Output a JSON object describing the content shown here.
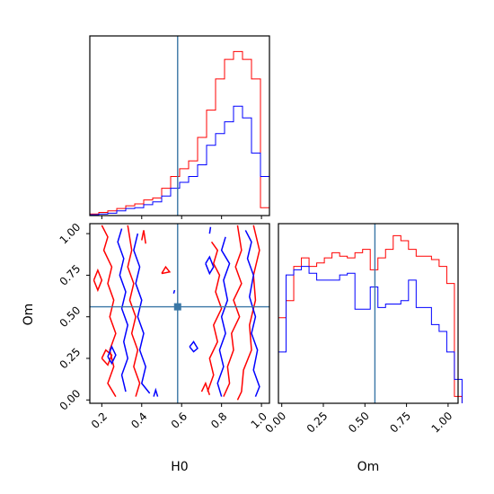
{
  "chart_data": {
    "type": "corner",
    "parameters": [
      "H0",
      "Om"
    ],
    "truth": {
      "H0": 0.58,
      "Om": 0.56
    },
    "colors": {
      "series_a": "#ff0000",
      "series_b": "#0000ff",
      "truth": "#3a77a6"
    },
    "ranges": {
      "H0": [
        0.14,
        1.04
      ],
      "Om": [
        -0.02,
        1.06
      ]
    },
    "grid": false,
    "ticks": {
      "H0": [
        0.2,
        0.4,
        0.6,
        0.8,
        1.0
      ],
      "H0_labels": [
        "0.2",
        "0.4",
        "0.6",
        "0.8",
        "1.0"
      ],
      "Om": [
        0.0,
        0.25,
        0.5,
        0.75,
        1.0
      ],
      "Om_labels": [
        "0.00",
        "0.25",
        "0.50",
        "0.75",
        "1.00"
      ]
    },
    "xlabel_left": "H0",
    "xlabel_right": "Om",
    "ylabel_lower": "Om",
    "hist_H0": {
      "x": [
        0.14,
        0.185,
        0.23,
        0.275,
        0.32,
        0.365,
        0.41,
        0.455,
        0.5,
        0.545,
        0.59,
        0.635,
        0.68,
        0.725,
        0.77,
        0.815,
        0.86,
        0.905,
        0.95,
        0.995
      ],
      "series": [
        {
          "values": [
            0.004,
            0.008,
            0.012,
            0.018,
            0.025,
            0.03,
            0.04,
            0.045,
            0.07,
            0.1,
            0.12,
            0.14,
            0.2,
            0.27,
            0.35,
            0.4,
            0.42,
            0.4,
            0.35,
            0.02
          ]
        },
        {
          "values": [
            0.002,
            0.004,
            0.006,
            0.012,
            0.018,
            0.02,
            0.028,
            0.035,
            0.05,
            0.07,
            0.085,
            0.1,
            0.13,
            0.18,
            0.21,
            0.24,
            0.28,
            0.25,
            0.16,
            0.1
          ]
        }
      ],
      "ylim": [
        0,
        0.46
      ]
    },
    "hist_Om": {
      "x": [
        -0.02,
        0.026,
        0.072,
        0.118,
        0.164,
        0.21,
        0.256,
        0.302,
        0.348,
        0.394,
        0.44,
        0.486,
        0.532,
        0.578,
        0.624,
        0.67,
        0.716,
        0.762,
        0.808,
        0.854,
        0.9,
        0.946,
        0.992,
        1.038
      ],
      "series": [
        {
          "values": [
            0.5,
            0.6,
            0.8,
            0.85,
            0.8,
            0.82,
            0.85,
            0.88,
            0.86,
            0.85,
            0.88,
            0.9,
            0.78,
            0.85,
            0.9,
            0.98,
            0.95,
            0.9,
            0.86,
            0.86,
            0.84,
            0.8,
            0.7,
            0.04
          ]
        },
        {
          "values": [
            0.3,
            0.75,
            0.78,
            0.8,
            0.76,
            0.72,
            0.72,
            0.72,
            0.75,
            0.76,
            0.55,
            0.55,
            0.68,
            0.56,
            0.58,
            0.58,
            0.6,
            0.72,
            0.56,
            0.56,
            0.46,
            0.42,
            0.3,
            0.14
          ]
        }
      ],
      "ylim": [
        0,
        1.05
      ]
    },
    "contours": [
      {
        "series": 0,
        "points": [
          [
            0.2,
            1.05
          ],
          [
            0.23,
            0.98
          ],
          [
            0.21,
            0.9
          ],
          [
            0.25,
            0.8
          ],
          [
            0.23,
            0.7
          ],
          [
            0.26,
            0.6
          ],
          [
            0.24,
            0.5
          ],
          [
            0.27,
            0.4
          ],
          [
            0.24,
            0.3
          ],
          [
            0.26,
            0.2
          ],
          [
            0.23,
            0.1
          ],
          [
            0.27,
            0.02
          ]
        ]
      },
      {
        "series": 0,
        "points": [
          [
            0.33,
            1.05
          ],
          [
            0.35,
            0.9
          ],
          [
            0.33,
            0.8
          ],
          [
            0.36,
            0.7
          ],
          [
            0.34,
            0.6
          ],
          [
            0.37,
            0.5
          ],
          [
            0.35,
            0.4
          ],
          [
            0.38,
            0.3
          ],
          [
            0.36,
            0.2
          ],
          [
            0.39,
            0.1
          ],
          [
            0.37,
            0.02
          ]
        ]
      },
      {
        "series": 0,
        "points": [
          [
            0.88,
            1.05
          ],
          [
            0.9,
            0.9
          ],
          [
            0.87,
            0.8
          ],
          [
            0.9,
            0.7
          ],
          [
            0.86,
            0.6
          ],
          [
            0.89,
            0.5
          ],
          [
            0.85,
            0.4
          ],
          [
            0.86,
            0.3
          ],
          [
            0.83,
            0.2
          ],
          [
            0.84,
            0.1
          ],
          [
            0.81,
            0.02
          ]
        ]
      },
      {
        "series": 0,
        "points": [
          [
            0.96,
            1.05
          ],
          [
            0.99,
            0.9
          ],
          [
            0.96,
            0.75
          ],
          [
            0.97,
            0.6
          ],
          [
            0.94,
            0.45
          ],
          [
            0.95,
            0.3
          ],
          [
            0.91,
            0.18
          ],
          [
            0.9,
            0.05
          ],
          [
            0.88,
            0.0
          ]
        ]
      },
      {
        "series": 0,
        "points": [
          [
            0.75,
            0.95
          ],
          [
            0.78,
            0.9
          ],
          [
            0.76,
            0.82
          ],
          [
            0.79,
            0.75
          ],
          [
            0.77,
            0.65
          ],
          [
            0.8,
            0.55
          ],
          [
            0.76,
            0.45
          ],
          [
            0.78,
            0.35
          ],
          [
            0.74,
            0.25
          ],
          [
            0.76,
            0.15
          ],
          [
            0.73,
            0.05
          ]
        ]
      },
      {
        "series": 0,
        "points": [
          [
            0.16,
            0.72
          ],
          [
            0.18,
            0.78
          ],
          [
            0.2,
            0.72
          ],
          [
            0.18,
            0.66
          ],
          [
            0.16,
            0.72
          ]
        ]
      },
      {
        "series": 0,
        "points": [
          [
            0.2,
            0.25
          ],
          [
            0.22,
            0.3
          ],
          [
            0.25,
            0.27
          ],
          [
            0.23,
            0.21
          ],
          [
            0.2,
            0.25
          ]
        ]
      },
      {
        "series": 0,
        "points": [
          [
            0.5,
            0.76
          ],
          [
            0.52,
            0.8
          ],
          [
            0.54,
            0.77
          ],
          [
            0.5,
            0.76
          ]
        ]
      },
      {
        "series": 0,
        "points": [
          [
            0.4,
            0.96
          ],
          [
            0.41,
            1.02
          ],
          [
            0.42,
            0.94
          ]
        ]
      },
      {
        "series": 0,
        "points": [
          [
            0.7,
            0.05
          ],
          [
            0.72,
            0.1
          ],
          [
            0.74,
            0.03
          ]
        ]
      },
      {
        "series": 1,
        "points": [
          [
            0.3,
            1.03
          ],
          [
            0.28,
            0.95
          ],
          [
            0.31,
            0.85
          ],
          [
            0.29,
            0.75
          ],
          [
            0.32,
            0.65
          ],
          [
            0.3,
            0.55
          ],
          [
            0.33,
            0.45
          ],
          [
            0.31,
            0.35
          ],
          [
            0.33,
            0.25
          ],
          [
            0.3,
            0.15
          ],
          [
            0.32,
            0.05
          ]
        ]
      },
      {
        "series": 1,
        "points": [
          [
            0.38,
            1.0
          ],
          [
            0.36,
            0.9
          ],
          [
            0.39,
            0.8
          ],
          [
            0.37,
            0.7
          ],
          [
            0.4,
            0.6
          ],
          [
            0.38,
            0.5
          ],
          [
            0.41,
            0.4
          ],
          [
            0.39,
            0.3
          ],
          [
            0.42,
            0.2
          ],
          [
            0.4,
            0.1
          ],
          [
            0.44,
            0.04
          ]
        ]
      },
      {
        "series": 1,
        "points": [
          [
            0.82,
            0.98
          ],
          [
            0.8,
            0.9
          ],
          [
            0.84,
            0.82
          ],
          [
            0.81,
            0.72
          ],
          [
            0.83,
            0.6
          ],
          [
            0.8,
            0.5
          ],
          [
            0.82,
            0.4
          ],
          [
            0.79,
            0.3
          ],
          [
            0.81,
            0.2
          ],
          [
            0.78,
            0.1
          ],
          [
            0.8,
            0.02
          ]
        ]
      },
      {
        "series": 1,
        "points": [
          [
            0.92,
            1.02
          ],
          [
            0.95,
            0.95
          ],
          [
            0.93,
            0.85
          ],
          [
            0.96,
            0.75
          ],
          [
            0.94,
            0.62
          ],
          [
            0.97,
            0.5
          ],
          [
            0.95,
            0.4
          ],
          [
            0.98,
            0.3
          ],
          [
            0.96,
            0.18
          ],
          [
            0.99,
            0.08
          ],
          [
            0.97,
            0.02
          ]
        ]
      },
      {
        "series": 1,
        "points": [
          [
            0.72,
            0.82
          ],
          [
            0.74,
            0.86
          ],
          [
            0.76,
            0.8
          ],
          [
            0.74,
            0.76
          ],
          [
            0.72,
            0.82
          ]
        ]
      },
      {
        "series": 1,
        "points": [
          [
            0.23,
            0.26
          ],
          [
            0.25,
            0.32
          ],
          [
            0.27,
            0.27
          ],
          [
            0.25,
            0.22
          ],
          [
            0.23,
            0.26
          ]
        ]
      },
      {
        "series": 1,
        "points": [
          [
            0.64,
            0.32
          ],
          [
            0.66,
            0.35
          ],
          [
            0.68,
            0.31
          ],
          [
            0.66,
            0.29
          ],
          [
            0.64,
            0.32
          ]
        ]
      },
      {
        "series": 1,
        "points": [
          [
            0.46,
            0.02
          ],
          [
            0.47,
            0.06
          ],
          [
            0.48,
            0.02
          ]
        ]
      },
      {
        "series": 1,
        "points": [
          [
            0.56,
            0.64
          ],
          [
            0.565,
            0.66
          ]
        ]
      },
      {
        "series": 1,
        "points": [
          [
            0.74,
            1.0
          ],
          [
            0.745,
            1.04
          ]
        ]
      }
    ]
  }
}
